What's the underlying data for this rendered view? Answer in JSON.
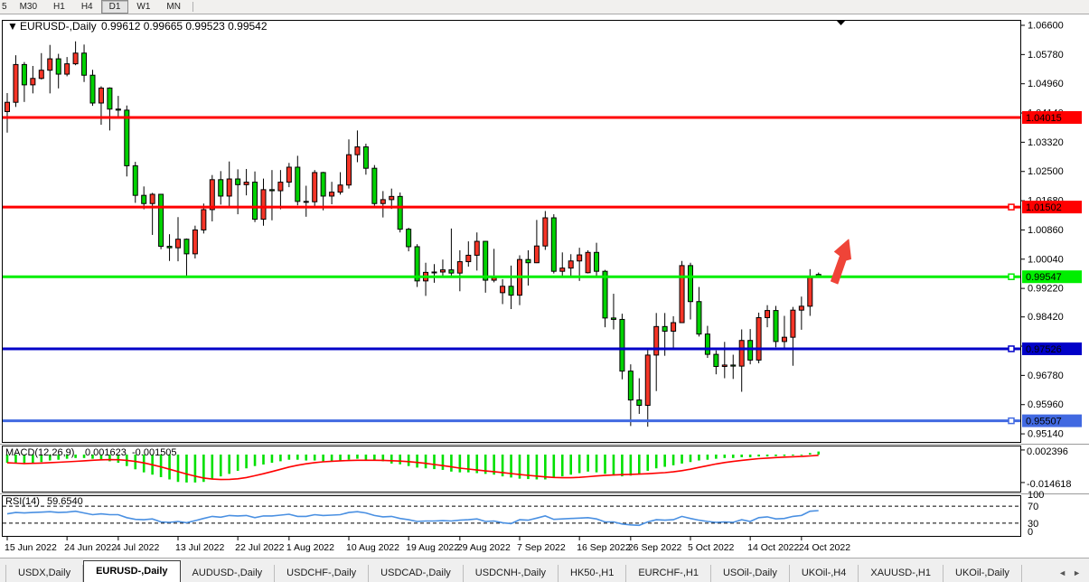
{
  "toolbar": {
    "periods": [
      {
        "label": "5",
        "active": false,
        "partial": true
      },
      {
        "label": "M30",
        "active": false
      },
      {
        "label": "H1",
        "active": false
      },
      {
        "label": "H4",
        "active": false
      },
      {
        "label": "D1",
        "active": true
      },
      {
        "label": "W1",
        "active": false
      },
      {
        "label": "MN",
        "active": false
      }
    ]
  },
  "title": {
    "marker": "▼",
    "symbol": "EURUSD-,Daily",
    "values": "0.99612 0.99665 0.99523 0.99542"
  },
  "price_axis": {
    "ticks": [
      "1.06600",
      "1.05780",
      "1.04960",
      "1.04140",
      "1.03320",
      "1.02500",
      "1.01680",
      "1.00860",
      "1.00040",
      "0.99220",
      "0.98420",
      "0.97600",
      "0.96780",
      "0.95960",
      "0.95140"
    ]
  },
  "hlines": [
    {
      "price": 1.04015,
      "label": "1.04015",
      "color": "#ff0000",
      "text_color": "#ffffff",
      "marker": false
    },
    {
      "price": 1.01502,
      "label": "1.01502",
      "color": "#ff0000",
      "text_color": "#ffffff",
      "marker": true
    },
    {
      "price": 0.99547,
      "label": "0.99547",
      "color": "#00ee00",
      "text_color": "#000000",
      "marker": true
    },
    {
      "price": 0.97526,
      "label": "0.97526",
      "color": "#0000c8",
      "text_color": "#ffffff",
      "marker": true
    },
    {
      "price": 0.95507,
      "label": "0.95507",
      "color": "#4169e1",
      "text_color": "#ffffff",
      "marker": true
    }
  ],
  "macd": {
    "name": "MACD(12,26,9)",
    "value_main": "0.001623",
    "value_signal": "-0.001505",
    "axis_top": "0.002396",
    "axis_bottom": "-0.014618",
    "bar_color": "#00e000",
    "signal_color": "#ff0000"
  },
  "rsi": {
    "name": "RSI(14)",
    "value": "59.6540",
    "axis_labels": [
      "100",
      "70",
      "30",
      "0"
    ],
    "levels": [
      70,
      30
    ],
    "line_color": "#4a90e2"
  },
  "x_axis": {
    "tick_indices": [
      0,
      7,
      13,
      20,
      27,
      33,
      40,
      47,
      53,
      60,
      67,
      73,
      80,
      87,
      93
    ],
    "labels": [
      "15 Jun 2022",
      "24 Jun 2022",
      "4 Jul 2022",
      "13 Jul 2022",
      "22 Jul 2022",
      "1 Aug 2022",
      "10 Aug 2022",
      "19 Aug 2022",
      "29 Aug 2022",
      "7 Sep 2022",
      "16 Sep 2022",
      "26 Sep 2022",
      "5 Oct 2022",
      "14 Oct 2022",
      "24 Oct 2022"
    ]
  },
  "tabs": [
    {
      "label": "USDX,Daily",
      "active": false
    },
    {
      "label": "EURUSD-,Daily",
      "active": true
    },
    {
      "label": "AUDUSD-,Daily",
      "active": false
    },
    {
      "label": "USDCHF-,Daily",
      "active": false
    },
    {
      "label": "USDCAD-,Daily",
      "active": false
    },
    {
      "label": "USDCNH-,Daily",
      "active": false
    },
    {
      "label": "HK50-,H1",
      "active": false
    },
    {
      "label": "EURCHF-,H1",
      "active": false
    },
    {
      "label": "USOil-,Daily",
      "active": false
    },
    {
      "label": "UKOil-,H4",
      "active": false
    },
    {
      "label": "XAUUSD-,H1",
      "active": false
    },
    {
      "label": "UKOil-,Daily",
      "active": false
    }
  ],
  "tab_scroll": {
    "left": "◄",
    "right": "►"
  },
  "chart_data": {
    "type": "candlestick",
    "symbol": "EURUSD-",
    "timeframe": "Daily",
    "current_bar": {
      "open": 0.99612,
      "high": 0.99665,
      "low": 0.99523,
      "close": 0.99542
    },
    "price_range": [
      0.9514,
      1.066
    ],
    "up_color": "#f53527",
    "down_color": "#00d200",
    "wick_color": "#000000",
    "candles": [
      [
        "15 Jun",
        1.0418,
        1.047,
        1.0359,
        1.0444
      ],
      [
        "16 Jun",
        1.0444,
        1.0576,
        1.0431,
        1.055
      ],
      [
        "17 Jun",
        1.055,
        1.0557,
        1.0445,
        1.0493
      ],
      [
        "20 Jun",
        1.0493,
        1.0546,
        1.0469,
        1.0511
      ],
      [
        "21 Jun",
        1.0511,
        1.0582,
        1.0508,
        1.0534
      ],
      [
        "22 Jun",
        1.0534,
        1.0605,
        1.0469,
        1.0566
      ],
      [
        "23 Jun",
        1.0566,
        1.058,
        1.0483,
        1.0523
      ],
      [
        "24 Jun",
        1.0523,
        1.0571,
        1.0517,
        1.0552
      ],
      [
        "27 Jun",
        1.0552,
        1.0615,
        1.0548,
        1.0582
      ],
      [
        "28 Jun",
        1.0582,
        1.0606,
        1.0501,
        1.052
      ],
      [
        "29 Jun",
        1.052,
        1.0535,
        1.0434,
        1.0442
      ],
      [
        "30 Jun",
        1.0442,
        1.0489,
        1.0381,
        1.0484
      ],
      [
        "1 Jul",
        1.0484,
        1.0486,
        1.0365,
        1.0425
      ],
      [
        "4 Jul",
        1.0425,
        1.0462,
        1.04,
        1.0422
      ],
      [
        "5 Jul",
        1.0422,
        1.0435,
        1.0236,
        1.0266
      ],
      [
        "6 Jul",
        1.0266,
        1.0277,
        1.0162,
        1.0183
      ],
      [
        "7 Jul",
        1.0183,
        1.0208,
        1.0144,
        1.016
      ],
      [
        "8 Jul",
        1.016,
        1.019,
        1.0072,
        1.0186
      ],
      [
        "11 Jul",
        1.0186,
        1.0186,
        1.0032,
        1.004
      ],
      [
        "12 Jul",
        1.004,
        1.0074,
        0.9999,
        1.0036
      ],
      [
        "13 Jul",
        1.0036,
        1.0122,
        0.9998,
        1.006
      ],
      [
        "14 Jul",
        1.006,
        1.0062,
        0.9952,
        1.0019
      ],
      [
        "15 Jul",
        1.0019,
        1.0098,
        1.0006,
        1.0086
      ],
      [
        "18 Jul",
        1.0086,
        1.016,
        1.0076,
        1.0143
      ],
      [
        "19 Jul",
        1.0143,
        1.024,
        1.011,
        1.0227
      ],
      [
        "20 Jul",
        1.0227,
        1.0251,
        1.0157,
        1.0181
      ],
      [
        "21 Jul",
        1.0181,
        1.0278,
        1.0153,
        1.0229
      ],
      [
        "22 Jul",
        1.0229,
        1.0256,
        1.013,
        1.0213
      ],
      [
        "25 Jul",
        1.0213,
        1.0257,
        1.0183,
        1.022
      ],
      [
        "26 Jul",
        1.022,
        1.025,
        1.0108,
        1.0116
      ],
      [
        "27 Jul",
        1.0116,
        1.023,
        1.0098,
        1.0199
      ],
      [
        "28 Jul",
        1.0199,
        1.0254,
        1.0113,
        1.0196
      ],
      [
        "29 Jul",
        1.0196,
        1.0254,
        1.0144,
        1.022
      ],
      [
        "1 Aug",
        1.022,
        1.0274,
        1.0206,
        1.0262
      ],
      [
        "2 Aug",
        1.0262,
        1.0294,
        1.0155,
        1.0166
      ],
      [
        "3 Aug",
        1.0166,
        1.021,
        1.0123,
        1.0165
      ],
      [
        "4 Aug",
        1.0165,
        1.0254,
        1.0151,
        1.0247
      ],
      [
        "5 Aug",
        1.0247,
        1.0249,
        1.0141,
        1.0181
      ],
      [
        "8 Aug",
        1.0181,
        1.0221,
        1.0158,
        1.0192
      ],
      [
        "9 Aug",
        1.0192,
        1.0248,
        1.0185,
        1.0212
      ],
      [
        "10 Aug",
        1.0212,
        1.034,
        1.0202,
        1.0297
      ],
      [
        "11 Aug",
        1.0297,
        1.0365,
        1.0276,
        1.0319
      ],
      [
        "12 Aug",
        1.0319,
        1.0328,
        1.0241,
        1.0259
      ],
      [
        "15 Aug",
        1.0259,
        1.0268,
        1.0154,
        1.016
      ],
      [
        "16 Aug",
        1.016,
        1.0195,
        1.0121,
        1.0171
      ],
      [
        "17 Aug",
        1.0171,
        1.0202,
        1.0145,
        1.018
      ],
      [
        "18 Aug",
        1.018,
        1.0191,
        1.0079,
        1.0088
      ],
      [
        "19 Aug",
        1.0088,
        1.0092,
        1.0026,
        1.0039
      ],
      [
        "22 Aug",
        1.0039,
        1.0046,
        0.9926,
        0.9943
      ],
      [
        "23 Aug",
        0.9943,
        0.9994,
        0.9901,
        0.9967
      ],
      [
        "24 Aug",
        0.9967,
        0.999,
        0.9938,
        0.9968
      ],
      [
        "25 Aug",
        0.9968,
        1.0003,
        0.9954,
        0.9974
      ],
      [
        "26 Aug",
        0.9974,
        1.009,
        0.9958,
        0.9965
      ],
      [
        "29 Aug",
        0.9965,
        1.0029,
        0.9914,
        0.9997
      ],
      [
        "30 Aug",
        0.9997,
        1.0054,
        0.9983,
        1.0015
      ],
      [
        "31 Aug",
        1.0015,
        1.0079,
        0.9972,
        1.0054
      ],
      [
        "1 Sep",
        1.0054,
        1.0055,
        0.991,
        0.9945
      ],
      [
        "2 Sep",
        0.9945,
        1.0033,
        0.9939,
        0.9952
      ],
      [
        "5 Sep",
        0.991,
        0.9948,
        0.9878,
        0.9928
      ],
      [
        "6 Sep",
        0.9928,
        0.9986,
        0.9864,
        0.9903
      ],
      [
        "7 Sep",
        0.9903,
        1.0015,
        0.9875,
        1.0003
      ],
      [
        "8 Sep",
        1.0003,
        1.0029,
        0.993,
        0.9994
      ],
      [
        "9 Sep",
        0.9994,
        1.0114,
        0.9993,
        1.0041
      ],
      [
        "12 Sep",
        1.0041,
        1.0139,
        1.003,
        1.012
      ],
      [
        "13 Sep",
        1.012,
        1.013,
        0.9964,
        0.997
      ],
      [
        "14 Sep",
        0.997,
        1.0023,
        0.9955,
        0.9979
      ],
      [
        "15 Sep",
        0.9979,
        1.0018,
        0.9954,
        0.9999
      ],
      [
        "16 Sep",
        0.9999,
        1.0036,
        0.9943,
        1.0016
      ],
      [
        "19 Sep",
        0.9966,
        1.0029,
        0.9964,
        1.0023
      ],
      [
        "20 Sep",
        1.0023,
        1.005,
        0.9954,
        0.997
      ],
      [
        "21 Sep",
        0.997,
        0.9974,
        0.9813,
        0.9839
      ],
      [
        "22 Sep",
        0.9839,
        0.9907,
        0.9807,
        0.9835
      ],
      [
        "23 Sep",
        0.9835,
        0.9851,
        0.9667,
        0.969
      ],
      [
        "26 Sep",
        0.969,
        0.9709,
        0.9536,
        0.9609
      ],
      [
        "27 Sep",
        0.9609,
        0.967,
        0.957,
        0.9594
      ],
      [
        "28 Sep",
        0.9594,
        0.9751,
        0.9534,
        0.9735
      ],
      [
        "29 Sep",
        0.9735,
        0.9853,
        0.9634,
        0.9815
      ],
      [
        "30 Sep",
        0.9815,
        0.9853,
        0.9733,
        0.9802
      ],
      [
        "3 Oct",
        0.9802,
        0.9844,
        0.9751,
        0.9826
      ],
      [
        "4 Oct",
        0.9826,
        0.9999,
        0.9825,
        0.9986
      ],
      [
        "5 Oct",
        0.9986,
        0.9994,
        0.9835,
        0.9885
      ],
      [
        "6 Oct",
        0.9885,
        0.9926,
        0.9787,
        0.9794
      ],
      [
        "7 Oct",
        0.9794,
        0.9817,
        0.9727,
        0.9737
      ],
      [
        "10 Oct",
        0.9737,
        0.9748,
        0.9681,
        0.9703
      ],
      [
        "11 Oct",
        0.9703,
        0.9772,
        0.967,
        0.9707
      ],
      [
        "12 Oct",
        0.9707,
        0.9736,
        0.9668,
        0.9704
      ],
      [
        "13 Oct",
        0.9704,
        0.9807,
        0.9632,
        0.9776
      ],
      [
        "14 Oct",
        0.9776,
        0.9808,
        0.9709,
        0.9721
      ],
      [
        "17 Oct",
        0.9721,
        0.9854,
        0.9712,
        0.984
      ],
      [
        "18 Oct",
        0.984,
        0.9875,
        0.9813,
        0.986
      ],
      [
        "19 Oct",
        0.986,
        0.9873,
        0.9757,
        0.9773
      ],
      [
        "20 Oct",
        0.9773,
        0.9845,
        0.9756,
        0.9785
      ],
      [
        "21 Oct",
        0.9785,
        0.987,
        0.9705,
        0.9861
      ],
      [
        "24 Oct",
        0.9861,
        0.9899,
        0.9806,
        0.9872
      ],
      [
        "25 Oct",
        0.9872,
        0.9976,
        0.9845,
        0.9954
      ],
      [
        "26 Oct",
        0.99612,
        0.99665,
        0.99523,
        0.99542
      ]
    ],
    "macd_hist": [
      -0.0043,
      -0.0047,
      -0.005,
      -0.0043,
      -0.0039,
      -0.0031,
      -0.0027,
      -0.0022,
      -0.0018,
      -0.0018,
      -0.0022,
      -0.0027,
      -0.0035,
      -0.0043,
      -0.006,
      -0.0077,
      -0.0093,
      -0.0105,
      -0.0118,
      -0.013,
      -0.0143,
      -0.0146,
      -0.0146,
      -0.0143,
      -0.013,
      -0.0114,
      -0.0101,
      -0.0085,
      -0.0072,
      -0.006,
      -0.0052,
      -0.0043,
      -0.0035,
      -0.0027,
      -0.0027,
      -0.0031,
      -0.0031,
      -0.0035,
      -0.0035,
      -0.0031,
      -0.0027,
      -0.0022,
      -0.0027,
      -0.0031,
      -0.0035,
      -0.0047,
      -0.0051,
      -0.006,
      -0.0068,
      -0.0072,
      -0.0076,
      -0.008,
      -0.0089,
      -0.0093,
      -0.0093,
      -0.0097,
      -0.0101,
      -0.0105,
      -0.0114,
      -0.012,
      -0.0126,
      -0.0128,
      -0.013,
      -0.013,
      -0.0122,
      -0.0114,
      -0.0105,
      -0.0097,
      -0.0089,
      -0.0093,
      -0.0101,
      -0.011,
      -0.0114,
      -0.011,
      -0.0101,
      -0.0085,
      -0.0072,
      -0.0064,
      -0.0056,
      -0.0047,
      -0.0039,
      -0.0031,
      -0.0027,
      -0.0022,
      -0.0018,
      -0.0018,
      -0.0014,
      -0.0014,
      -0.001,
      -0.001,
      -0.0008,
      -0.0007,
      -0.0005,
      -0.0004,
      0.0008,
      0.0016
    ],
    "rsi_values": [
      52,
      55,
      54,
      55,
      56,
      57,
      55,
      56,
      58,
      54,
      50,
      52,
      50,
      50,
      43,
      39,
      38,
      40,
      33,
      32,
      34,
      31,
      36,
      41,
      46,
      44,
      48,
      47,
      48,
      43,
      47,
      47,
      49,
      51,
      46,
      46,
      50,
      48,
      49,
      50,
      55,
      57,
      54,
      48,
      45,
      46,
      41,
      38,
      34,
      35,
      35,
      36,
      35,
      37,
      38,
      40,
      34,
      35,
      31,
      29,
      38,
      37,
      42,
      47,
      39,
      40,
      41,
      42,
      43,
      40,
      33,
      33,
      28,
      26,
      25,
      33,
      38,
      37,
      38,
      46,
      41,
      37,
      34,
      32,
      33,
      32,
      38,
      34,
      43,
      45,
      40,
      41,
      46,
      48,
      58,
      59.65
    ],
    "annotations": {
      "arrow_color": "#ef4438",
      "bar_marker": "▼"
    }
  }
}
